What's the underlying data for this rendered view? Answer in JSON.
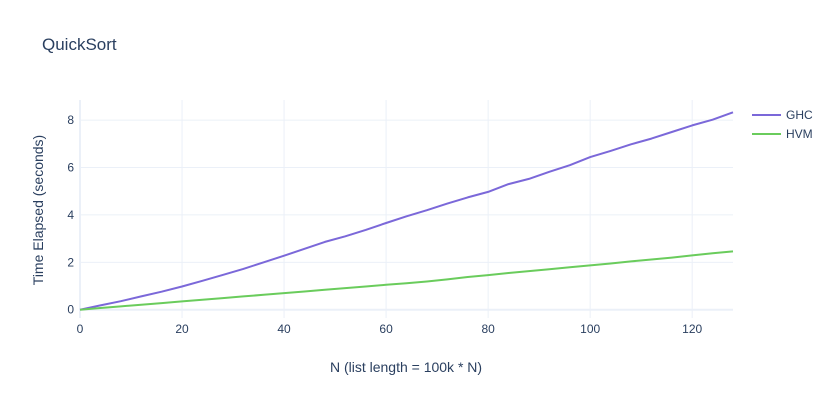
{
  "chart_data": {
    "type": "line",
    "title": "QuickSort",
    "xlabel": "N (list length = 100k * N)",
    "ylabel": "Time Elapsed (seconds)",
    "xlim": [
      0,
      128
    ],
    "ylim": [
      -0.35,
      8.85
    ],
    "x_ticks": [
      0,
      20,
      40,
      60,
      80,
      100,
      120
    ],
    "y_ticks": [
      0,
      2,
      4,
      6,
      8
    ],
    "grid": true,
    "legend_position": "top-right",
    "series": [
      {
        "name": "GHC",
        "color": "#7b68d9",
        "x": [
          0,
          4,
          8,
          12,
          16,
          20,
          24,
          28,
          32,
          36,
          40,
          44,
          48,
          52,
          56,
          60,
          64,
          68,
          72,
          76,
          80,
          84,
          88,
          92,
          96,
          100,
          104,
          108,
          112,
          116,
          120,
          124,
          128
        ],
        "y": [
          0,
          0.18,
          0.36,
          0.56,
          0.76,
          0.98,
          1.22,
          1.47,
          1.72,
          2.0,
          2.28,
          2.57,
          2.86,
          3.1,
          3.37,
          3.66,
          3.94,
          4.2,
          4.48,
          4.74,
          4.97,
          5.3,
          5.52,
          5.82,
          6.1,
          6.44,
          6.7,
          6.98,
          7.22,
          7.5,
          7.78,
          8.02,
          8.33
        ]
      },
      {
        "name": "HVM",
        "color": "#6acc5c",
        "x": [
          0,
          4,
          8,
          12,
          16,
          20,
          24,
          28,
          32,
          36,
          40,
          44,
          48,
          52,
          56,
          60,
          64,
          68,
          72,
          76,
          80,
          84,
          88,
          92,
          96,
          100,
          104,
          108,
          112,
          116,
          120,
          124,
          128
        ],
        "y": [
          0,
          0.07,
          0.14,
          0.21,
          0.28,
          0.35,
          0.42,
          0.49,
          0.56,
          0.63,
          0.7,
          0.77,
          0.84,
          0.91,
          0.98,
          1.05,
          1.12,
          1.19,
          1.28,
          1.38,
          1.46,
          1.55,
          1.63,
          1.71,
          1.79,
          1.87,
          1.95,
          2.04,
          2.12,
          2.2,
          2.29,
          2.38,
          2.46
        ]
      }
    ]
  }
}
